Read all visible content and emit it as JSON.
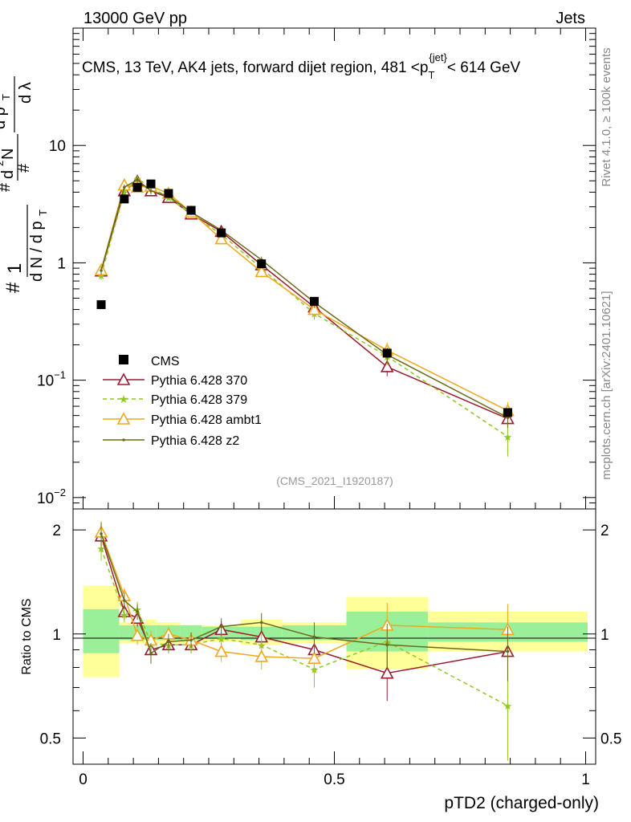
{
  "header": {
    "left": "13000 GeV pp",
    "right": "Jets"
  },
  "chart_data": {
    "type": "scatter",
    "title": "CMS, 13 TeV, AK4 jets, forward dijet region, 481 <p_T^{jet}< 614 GeV",
    "title_parts": {
      "prefix": "CMS, 13 TeV, AK4 jets, forward dijet region, 481 <p",
      "sub": "T",
      "sup": "{jet}",
      "suffix": "< 614 GeV"
    },
    "analysis_id": "(CMS_2021_I1920187)",
    "side_labels": {
      "rivet": "Rivet 4.1.0, ≥ 100k events",
      "mcplots": "mcplots.cern.ch [arXiv:2401.10621]"
    },
    "xlabel": "pTD2 (charged-only)",
    "ylabel_main": "1/(dN/dp_T) d²N/(dp_T dλ)",
    "ylabel_ratio": "Ratio to CMS",
    "xlim": [
      0,
      1
    ],
    "ylim_main": [
      0.008,
      100
    ],
    "ylim_ratio": [
      0.42,
      2.3
    ],
    "main_tick_labels": [
      {
        "value": 10,
        "base": "10",
        "exp": ""
      },
      {
        "value": 1,
        "base": "1",
        "exp": ""
      },
      {
        "value": 0.1,
        "base": "10",
        "exp": "−1"
      },
      {
        "value": 0.01,
        "base": "10",
        "exp": "−2"
      }
    ],
    "ratio_tick_labels": [
      {
        "value": 2,
        "label": "2"
      },
      {
        "value": 1,
        "label": "1"
      },
      {
        "value": 0.5,
        "label": "0.5"
      }
    ],
    "x_tick_labels": [
      {
        "value": 0,
        "label": "0"
      },
      {
        "value": 0.5,
        "label": "0.5"
      },
      {
        "value": 1,
        "label": "1"
      }
    ],
    "data": {
      "name": "CMS",
      "x": [
        0.036,
        0.082,
        0.108,
        0.135,
        0.17,
        0.215,
        0.275,
        0.355,
        0.46,
        0.605,
        0.845
      ],
      "xerr": [
        0.036,
        0.01,
        0.016,
        0.011,
        0.024,
        0.021,
        0.039,
        0.041,
        0.064,
        0.081,
        0.159
      ],
      "y": [
        0.44,
        3.5,
        4.4,
        4.7,
        3.9,
        2.8,
        1.8,
        0.98,
        0.47,
        0.17,
        0.053
      ],
      "band_green": [
        [
          0.88,
          1.18
        ],
        [
          0.96,
          1.06
        ],
        [
          0.96,
          1.06
        ],
        [
          0.96,
          1.06
        ],
        [
          0.96,
          1.06
        ],
        [
          0.96,
          1.06
        ],
        [
          0.97,
          1.05
        ],
        [
          0.96,
          1.05
        ],
        [
          0.96,
          1.06
        ],
        [
          0.89,
          1.16
        ],
        [
          0.95,
          1.08
        ]
      ],
      "band_yellow": [
        [
          0.75,
          1.38
        ],
        [
          0.94,
          1.08
        ],
        [
          0.94,
          1.08
        ],
        [
          0.94,
          1.1
        ],
        [
          0.94,
          1.08
        ],
        [
          0.94,
          1.06
        ],
        [
          0.95,
          1.06
        ],
        [
          0.93,
          1.1
        ],
        [
          0.94,
          1.08
        ],
        [
          0.79,
          1.28
        ],
        [
          0.89,
          1.16
        ]
      ]
    },
    "series": [
      {
        "name": "Pythia 6.428 370",
        "color": "#9b1b30",
        "marker": "triangle-open",
        "dash": "",
        "x": [
          0.036,
          0.082,
          0.108,
          0.135,
          0.17,
          0.215,
          0.275,
          0.355,
          0.46,
          0.605,
          0.845
        ],
        "y": [
          0.85,
          4.1,
          4.95,
          4.1,
          3.6,
          2.6,
          1.85,
          0.96,
          0.42,
          0.13,
          0.047
        ],
        "ratio": [
          1.92,
          1.16,
          1.11,
          0.9,
          0.93,
          0.93,
          1.03,
          0.98,
          0.9,
          0.77,
          0.89
        ],
        "ratio_err": [
          0.15,
          0.06,
          0.06,
          0.06,
          0.05,
          0.05,
          0.06,
          0.07,
          0.1,
          0.13,
          0.16
        ]
      },
      {
        "name": "Pythia 6.428 379",
        "color": "#8fc81e",
        "marker": "star",
        "dash": "5,4",
        "x": [
          0.036,
          0.082,
          0.108,
          0.135,
          0.17,
          0.215,
          0.275,
          0.355,
          0.46,
          0.605,
          0.845
        ],
        "y": [
          0.78,
          4.0,
          5.2,
          4.4,
          3.6,
          2.6,
          1.75,
          0.9,
          0.37,
          0.16,
          0.033
        ],
        "ratio": [
          1.77,
          1.14,
          1.18,
          0.94,
          0.93,
          0.93,
          0.97,
          0.93,
          0.79,
          0.95,
          0.62
        ],
        "ratio_err": [
          0.14,
          0.06,
          0.06,
          0.06,
          0.05,
          0.05,
          0.06,
          0.07,
          0.09,
          0.15,
          0.2
        ]
      },
      {
        "name": "Pythia 6.428 ambt1",
        "color": "#f0a81e",
        "marker": "triangle-open",
        "dash": "",
        "x": [
          0.036,
          0.082,
          0.108,
          0.135,
          0.17,
          0.215,
          0.275,
          0.355,
          0.46,
          0.605,
          0.845
        ],
        "y": [
          0.87,
          4.6,
          4.4,
          4.5,
          3.9,
          2.7,
          1.6,
          0.84,
          0.4,
          0.18,
          0.055
        ],
        "ratio": [
          1.97,
          1.29,
          0.99,
          0.96,
          1.0,
          0.96,
          0.89,
          0.86,
          0.85,
          1.06,
          1.03
        ],
        "ratio_err": [
          0.15,
          0.07,
          0.06,
          0.06,
          0.05,
          0.05,
          0.06,
          0.07,
          0.1,
          0.17,
          0.19
        ]
      },
      {
        "name": "Pythia 6.428 z2",
        "color": "#6b6b1b",
        "marker": "dot",
        "dash": "",
        "x": [
          0.036,
          0.082,
          0.108,
          0.135,
          0.17,
          0.215,
          0.275,
          0.355,
          0.46,
          0.605,
          0.845
        ],
        "y": [
          0.86,
          4.4,
          5.1,
          4.1,
          3.7,
          2.7,
          1.9,
          1.06,
          0.46,
          0.165,
          0.048
        ],
        "ratio": [
          1.95,
          1.25,
          1.16,
          0.88,
          0.95,
          0.96,
          1.05,
          1.08,
          0.98,
          0.93,
          0.89
        ],
        "ratio_err": [
          0.15,
          0.07,
          0.06,
          0.06,
          0.05,
          0.05,
          0.06,
          0.07,
          0.1,
          0.14,
          0.16
        ]
      }
    ]
  }
}
